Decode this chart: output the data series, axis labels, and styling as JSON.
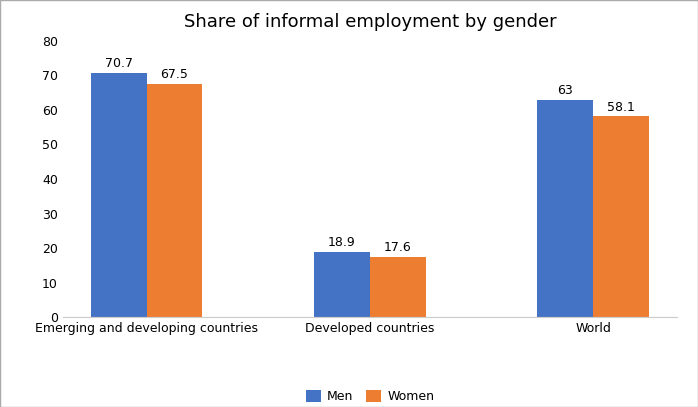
{
  "title": "Share of informal employment by gender",
  "categories": [
    "Emerging and developing countries",
    "Developed countries",
    "World"
  ],
  "men_values": [
    70.7,
    18.9,
    63
  ],
  "women_values": [
    67.5,
    17.6,
    58.1
  ],
  "men_color": "#4472C4",
  "women_color": "#ED7D31",
  "legend_labels": [
    "Men",
    "Women"
  ],
  "ylim": [
    0,
    80
  ],
  "yticks": [
    0,
    10,
    20,
    30,
    40,
    50,
    60,
    70,
    80
  ],
  "bar_width": 0.25,
  "background_color": "#FFFFFF",
  "border_color": "#D0D0D0",
  "title_fontsize": 13,
  "label_fontsize": 9,
  "tick_fontsize": 9,
  "value_fontsize": 9
}
